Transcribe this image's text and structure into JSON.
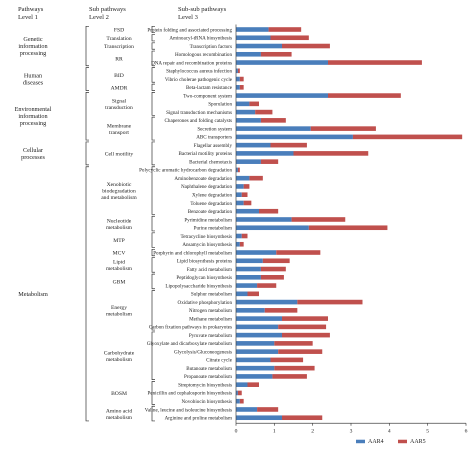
{
  "chart_data": {
    "type": "bar",
    "orientation": "horizontal",
    "stacked": true,
    "headers": {
      "level1": [
        "Pathways",
        "Level 1"
      ],
      "level2": [
        "Sub pathways",
        "Level 2"
      ],
      "level3": [
        "Sub-sub pathways",
        "Level 3"
      ]
    },
    "xlim": [
      0,
      6
    ],
    "xticks": [
      0,
      1,
      2,
      3,
      4,
      5,
      6
    ],
    "grid": false,
    "legend_position": "bottom-right",
    "series": [
      {
        "name": "AAR4",
        "color": "#4a7ebb"
      },
      {
        "name": "AAR5",
        "color": "#c0504d"
      }
    ],
    "categories": [
      {
        "label": "Protein folding and associated processing",
        "aar4": 0.85,
        "aar5": 0.85
      },
      {
        "label": "Aminoacyl-tRNA biosynthesis",
        "aar4": 0.9,
        "aar5": 1.0
      },
      {
        "label": "Transcription factors",
        "aar4": 1.2,
        "aar5": 1.25
      },
      {
        "label": "Homologous recombination",
        "aar4": 0.65,
        "aar5": 0.8
      },
      {
        "label": "DNA repair and recombination proteins",
        "aar4": 2.4,
        "aar5": 2.45
      },
      {
        "label": "Staphylococcus aureus infection",
        "aar4": 0.05,
        "aar5": 0.05
      },
      {
        "label": "Vibrio cholerae pathogenic cycle",
        "aar4": 0.1,
        "aar5": 0.1
      },
      {
        "label": "Beta-lactam resistance",
        "aar4": 0.1,
        "aar5": 0.1
      },
      {
        "label": "Two-component system",
        "aar4": 2.4,
        "aar5": 1.9
      },
      {
        "label": "Sporulation",
        "aar4": 0.35,
        "aar5": 0.25
      },
      {
        "label": "Signal transduction mechanisms",
        "aar4": 0.5,
        "aar5": 0.45
      },
      {
        "label": "Chaperones and folding catalysts",
        "aar4": 0.65,
        "aar5": 0.65
      },
      {
        "label": "Secretion system",
        "aar4": 1.95,
        "aar5": 1.7
      },
      {
        "label": "ABC transporters",
        "aar4": 3.05,
        "aar5": 2.85
      },
      {
        "label": "Flagellar assembly",
        "aar4": 0.9,
        "aar5": 0.95
      },
      {
        "label": "Bacterial motility proteins",
        "aar4": 1.5,
        "aar5": 1.95
      },
      {
        "label": "Bacterial chemotaxis",
        "aar4": 0.65,
        "aar5": 0.45
      },
      {
        "label": "Polycyclic aromatic hydrocarbon degradation",
        "aar4": 0.05,
        "aar5": 0.05
      },
      {
        "label": "Aminobenzoate degradation",
        "aar4": 0.35,
        "aar5": 0.35
      },
      {
        "label": "Naphthalene degradation",
        "aar4": 0.2,
        "aar5": 0.15
      },
      {
        "label": "Xylene degradation",
        "aar4": 0.15,
        "aar5": 0.15
      },
      {
        "label": "Toluene degradation",
        "aar4": 0.2,
        "aar5": 0.2
      },
      {
        "label": "Benzoate degradation",
        "aar4": 0.6,
        "aar5": 0.5
      },
      {
        "label": "Pyrimidine metabolism",
        "aar4": 1.45,
        "aar5": 1.4
      },
      {
        "label": "Purine metabolism",
        "aar4": 1.9,
        "aar5": 2.05
      },
      {
        "label": "Tetracycline biosynthesis",
        "aar4": 0.15,
        "aar5": 0.15
      },
      {
        "label": "Ansamycin biosynthesis",
        "aar4": 0.1,
        "aar5": 0.1
      },
      {
        "label": "Porphyrin and chlorophyll metabolism",
        "aar4": 1.05,
        "aar5": 1.15
      },
      {
        "label": "Lipid biosynthesis proteins",
        "aar4": 0.7,
        "aar5": 0.7
      },
      {
        "label": "Fatty acid metabolism",
        "aar4": 0.65,
        "aar5": 0.65
      },
      {
        "label": "Peptidoglycan biosynthesis",
        "aar4": 0.65,
        "aar5": 0.6
      },
      {
        "label": "Lipopolysaccharide biosynthesis",
        "aar4": 0.55,
        "aar5": 0.5
      },
      {
        "label": "Sulphur metabolism",
        "aar4": 0.3,
        "aar5": 0.3
      },
      {
        "label": "Oxidative phosphorylation",
        "aar4": 1.6,
        "aar5": 1.7
      },
      {
        "label": "Nitrogen metabolism",
        "aar4": 0.75,
        "aar5": 0.85
      },
      {
        "label": "Methane metabolism",
        "aar4": 1.2,
        "aar5": 1.2
      },
      {
        "label": "Carbon fixation pathways in prokaryotes",
        "aar4": 1.1,
        "aar5": 1.25
      },
      {
        "label": "Pyruvate metabolism",
        "aar4": 1.2,
        "aar5": 1.25
      },
      {
        "label": "Glyoxylate and dicarboxylate metabolism",
        "aar4": 1.0,
        "aar5": 1.0
      },
      {
        "label": "Glycolysis/Gluconeogenesis",
        "aar4": 1.1,
        "aar5": 1.15
      },
      {
        "label": "Citrate cycle",
        "aar4": 0.9,
        "aar5": 0.85
      },
      {
        "label": "Butanoate metabolism",
        "aar4": 1.0,
        "aar5": 1.05
      },
      {
        "label": "Propanoate metabolism",
        "aar4": 0.95,
        "aar5": 0.9
      },
      {
        "label": "Streptomycin biosynthesis",
        "aar4": 0.3,
        "aar5": 0.3
      },
      {
        "label": "Penicillin and cephalosporin biosynthesis",
        "aar4": 0.05,
        "aar5": 0.1
      },
      {
        "label": "Novobiocin biosynthesis",
        "aar4": 0.1,
        "aar5": 0.1
      },
      {
        "label": "Valine, leucine and isoleucine biosynthesis",
        "aar4": 0.55,
        "aar5": 0.55
      },
      {
        "label": "Arginine and proline metabolism",
        "aar4": 1.2,
        "aar5": 1.05
      }
    ],
    "level2_groups": [
      {
        "lines": [
          "FSD"
        ],
        "start": 0,
        "end": 0
      },
      {
        "lines": [
          "Translation"
        ],
        "start": 1,
        "end": 1
      },
      {
        "lines": [
          "Transcription"
        ],
        "start": 2,
        "end": 2
      },
      {
        "lines": [
          "RR"
        ],
        "start": 3,
        "end": 4
      },
      {
        "lines": [
          "BID"
        ],
        "start": 5,
        "end": 6
      },
      {
        "lines": [
          "AMDR"
        ],
        "start": 7,
        "end": 7
      },
      {
        "lines": [
          "Signal",
          "transduction"
        ],
        "start": 8,
        "end": 10
      },
      {
        "lines": [
          "Membrane",
          "transport"
        ],
        "start": 11,
        "end": 13
      },
      {
        "lines": [
          "Cell motility"
        ],
        "start": 14,
        "end": 16
      },
      {
        "lines": [
          "Xenobiotic",
          "biodegradation",
          "and metabolism"
        ],
        "start": 17,
        "end": 22
      },
      {
        "lines": [
          "Nucleotide",
          "metabolism"
        ],
        "start": 23,
        "end": 24
      },
      {
        "lines": [
          "MTP"
        ],
        "start": 25,
        "end": 26
      },
      {
        "lines": [
          "MCV"
        ],
        "start": 27,
        "end": 27
      },
      {
        "lines": [
          "Lipid",
          "metabolism"
        ],
        "start": 28,
        "end": 29
      },
      {
        "lines": [
          "GBM"
        ],
        "start": 30,
        "end": 31
      },
      {
        "lines": [
          "Energy",
          "metabolism"
        ],
        "start": 32,
        "end": 36
      },
      {
        "lines": [
          "Carbohydrate",
          "metabolism"
        ],
        "start": 37,
        "end": 42
      },
      {
        "lines": [
          "BOSM"
        ],
        "start": 43,
        "end": 45
      },
      {
        "lines": [
          "Amino acid",
          "metabolism"
        ],
        "start": 46,
        "end": 47
      }
    ],
    "level1_groups": [
      {
        "lines": [
          "Genetic",
          "information",
          "processing"
        ],
        "start": 0,
        "end": 4
      },
      {
        "lines": [
          "Human",
          "diseases"
        ],
        "start": 5,
        "end": 7
      },
      {
        "lines": [
          "Environmental",
          "information",
          "processing"
        ],
        "start": 8,
        "end": 13
      },
      {
        "lines": [
          "Cellular",
          "processes"
        ],
        "start": 14,
        "end": 16
      },
      {
        "lines": [
          "Metabolism"
        ],
        "start": 17,
        "end": 47
      }
    ]
  }
}
